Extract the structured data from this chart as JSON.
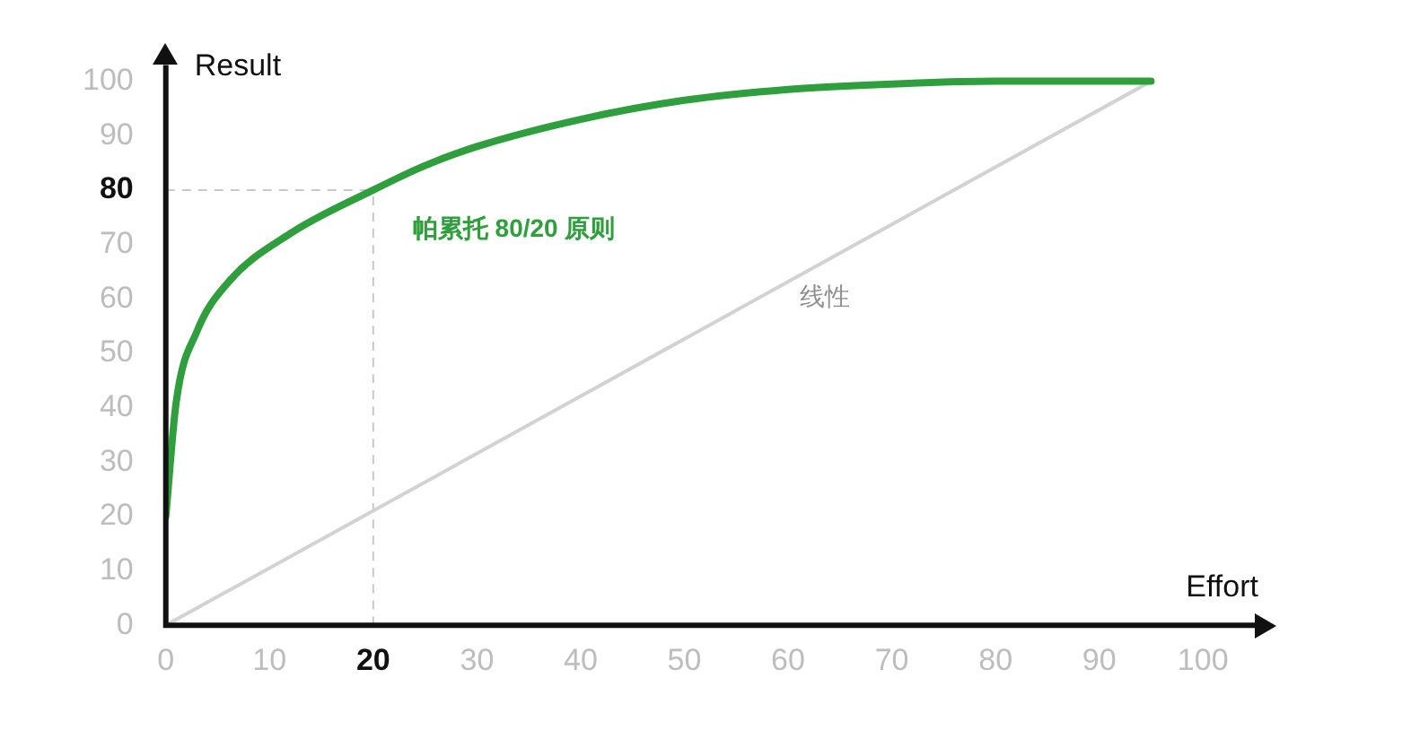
{
  "chart_data": {
    "type": "line",
    "xlabel": "Effort",
    "ylabel": "Result",
    "xlim": [
      0,
      105
    ],
    "xticks": [
      0,
      10,
      20,
      30,
      40,
      50,
      60,
      70,
      80,
      90,
      100
    ],
    "ylim": [
      0,
      103
    ],
    "yticks": [
      0,
      10,
      20,
      30,
      40,
      50,
      60,
      70,
      80,
      90,
      100
    ],
    "series": [
      {
        "name": "帕累托 80/20 原则",
        "color": "#2f9e3c",
        "x": [
          0,
          1,
          3,
          6,
          12,
          20,
          25,
          30,
          40,
          50,
          60,
          70,
          80,
          95
        ],
        "values": [
          20,
          41,
          54,
          63,
          72,
          80,
          84.5,
          88,
          93,
          96.5,
          98.5,
          99.5,
          100,
          100
        ]
      },
      {
        "name": "线性",
        "color": "#d2d2d2",
        "x": [
          0,
          95
        ],
        "values": [
          0,
          100
        ]
      },
      {
        "color": "#c8c8c8",
        "line_style": "dashed",
        "x": [
          0,
          20
        ],
        "values": [
          80,
          80
        ]
      },
      {
        "color": "#c8c8c8",
        "line_style": "dashed",
        "x": [
          20,
          20
        ],
        "values": [
          0,
          80
        ]
      }
    ],
    "grid": false,
    "legend": false,
    "marker": "none",
    "line_style": "solid"
  }
}
